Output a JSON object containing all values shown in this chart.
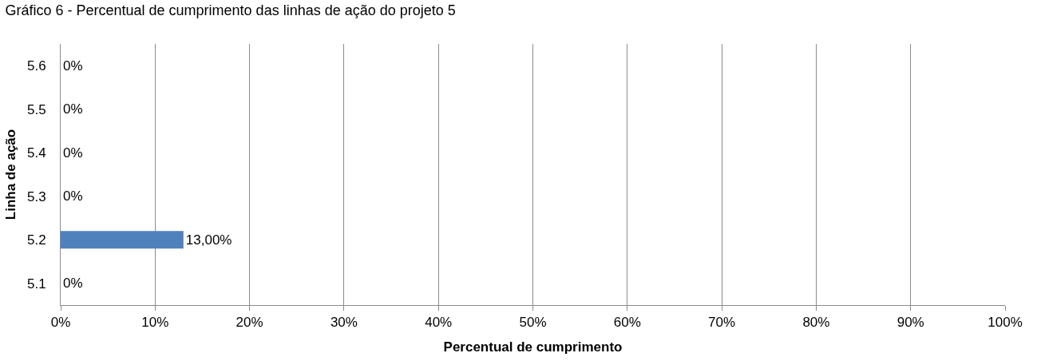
{
  "chart_data": {
    "type": "bar",
    "orientation": "horizontal",
    "title": "Gráfico 6 - Percentual de cumprimento das linhas de ação do projeto 5",
    "xlabel": "Percentual de cumprimento",
    "ylabel": "Linha de ação",
    "categories": [
      "5.6",
      "5.5",
      "5.4",
      "5.3",
      "5.2",
      "5.1"
    ],
    "values": [
      0,
      0,
      0,
      0,
      13,
      0
    ],
    "value_labels": [
      "0%",
      "0%",
      "0%",
      "0%",
      "13,00%",
      "0%"
    ],
    "color": "#4f81bd",
    "xlim": [
      0,
      100
    ],
    "xticks": [
      {
        "value": 0,
        "label": "0%"
      },
      {
        "value": 10,
        "label": "10%"
      },
      {
        "value": 20,
        "label": "20%"
      },
      {
        "value": 30,
        "label": "30%"
      },
      {
        "value": 40,
        "label": "40%"
      },
      {
        "value": 50,
        "label": "50%"
      },
      {
        "value": 60,
        "label": "60%"
      },
      {
        "value": 70,
        "label": "70%"
      },
      {
        "value": 80,
        "label": "80%"
      },
      {
        "value": 90,
        "label": "90%"
      },
      {
        "value": 100,
        "label": "100%"
      }
    ],
    "grid": "x",
    "legend": false
  }
}
